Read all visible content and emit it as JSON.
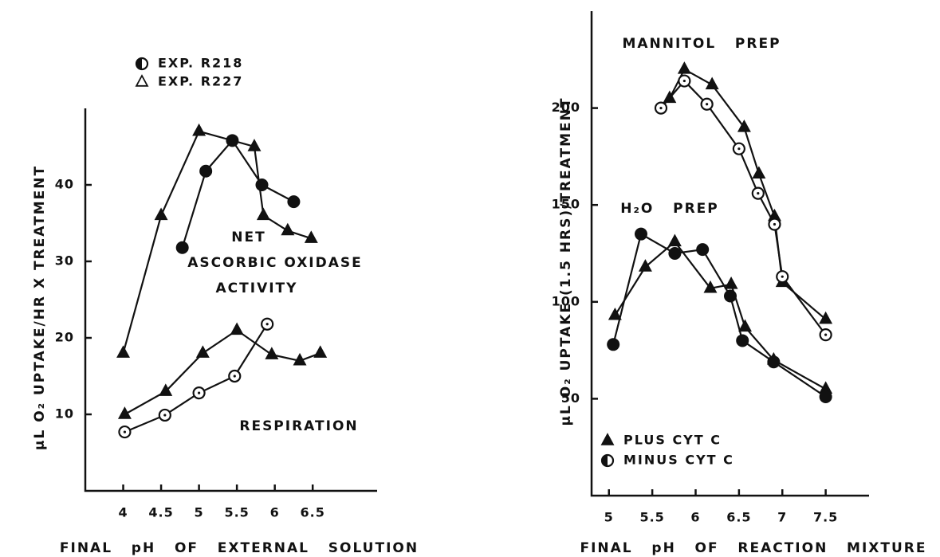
{
  "chart_data": [
    {
      "type": "line",
      "y_label": "μL O₂ UPTAKE/HR X TREATMENT",
      "x_label": "FINAL   pH   OF   EXTERNAL   SOLUTION",
      "xlim": [
        3.5,
        7.35
      ],
      "xticks": [
        4,
        4.5,
        5,
        5.5,
        6,
        6.5
      ],
      "ylim": [
        0,
        50
      ],
      "yticks": [
        10,
        20,
        30,
        40
      ],
      "annotations": [
        "NET",
        "ASCORBIC OXIDASE",
        "ACTIVITY",
        "RESPIRATION"
      ],
      "series": [
        {
          "name": "EXP. R218",
          "color": "#111111",
          "marker": "filled-circle",
          "legend_marker": "half-circle",
          "x": [
            4.78,
            5.09,
            5.44,
            5.83,
            6.25
          ],
          "values": [
            31.8,
            41.8,
            45.8,
            40,
            37.8
          ]
        },
        {
          "name": "EXP. R227",
          "color": "#111111",
          "marker": "filled-triangle",
          "legend_marker": "open-triangle",
          "x": [
            4,
            4.5,
            5.0,
            5.73,
            5.85,
            6.17,
            6.48
          ],
          "values": [
            18,
            36,
            47,
            45,
            36,
            34,
            33
          ]
        },
        {
          "name": "EXP. R227",
          "color": "#111111",
          "marker": "filled-triangle",
          "x": [
            4.02,
            4.56,
            5.05,
            5.5,
            5.96,
            6.33,
            6.6
          ],
          "values": [
            10,
            13,
            18,
            21,
            17.8,
            17,
            18
          ]
        },
        {
          "name": "EXP. R218",
          "color": "#111111",
          "marker": "open-circle",
          "x": [
            4.02,
            4.55,
            5.0,
            5.47,
            5.9
          ],
          "values": [
            7.7,
            9.9,
            12.8,
            15,
            21.8
          ]
        }
      ]
    },
    {
      "type": "line",
      "y_label": "μL O₂ UPTAKE (1.5 HRS)/TREATMENT",
      "x_label": "FINAL   pH   OF   REACTION   MIXTURE",
      "xlim": [
        4.8,
        8.0
      ],
      "xticks": [
        5,
        5.5,
        6,
        6.5,
        7,
        7.5
      ],
      "ylim": [
        0,
        250
      ],
      "yticks": [
        50,
        100,
        150,
        200
      ],
      "annotations": [
        "MANNITOL   PREP",
        "H₂O   PREP"
      ],
      "series": [
        {
          "name": "PLUS CYT C",
          "color": "#111111",
          "marker": "filled-triangle",
          "legend_marker": "filled-triangle",
          "x": [
            5.7,
            5.87,
            6.19,
            6.56,
            6.73,
            6.91,
            7.0,
            7.5
          ],
          "values": [
            205,
            220,
            212,
            190,
            166,
            144,
            110,
            91
          ]
        },
        {
          "name": "MINUS CYT C",
          "color": "#111111",
          "marker": "open-circle",
          "legend_marker": "half-circle",
          "x": [
            5.6,
            5.87,
            6.13,
            6.5,
            6.72,
            6.91,
            7.0,
            7.5
          ],
          "values": [
            200,
            214,
            202,
            179,
            156,
            140,
            113,
            83
          ]
        },
        {
          "name": "PLUS CYT C",
          "color": "#111111",
          "marker": "filled-triangle",
          "x": [
            5.07,
            5.42,
            5.76,
            6.17,
            6.41,
            6.57,
            6.9,
            7.5
          ],
          "values": [
            93,
            118,
            131,
            107,
            109,
            87,
            70,
            55
          ]
        },
        {
          "name": "MINUS CYT C",
          "color": "#111111",
          "marker": "filled-circle",
          "x": [
            5.05,
            5.37,
            5.76,
            6.08,
            6.4,
            6.54,
            6.9,
            7.5
          ],
          "values": [
            78,
            135,
            125,
            127,
            103,
            80,
            69,
            51
          ]
        }
      ]
    }
  ]
}
